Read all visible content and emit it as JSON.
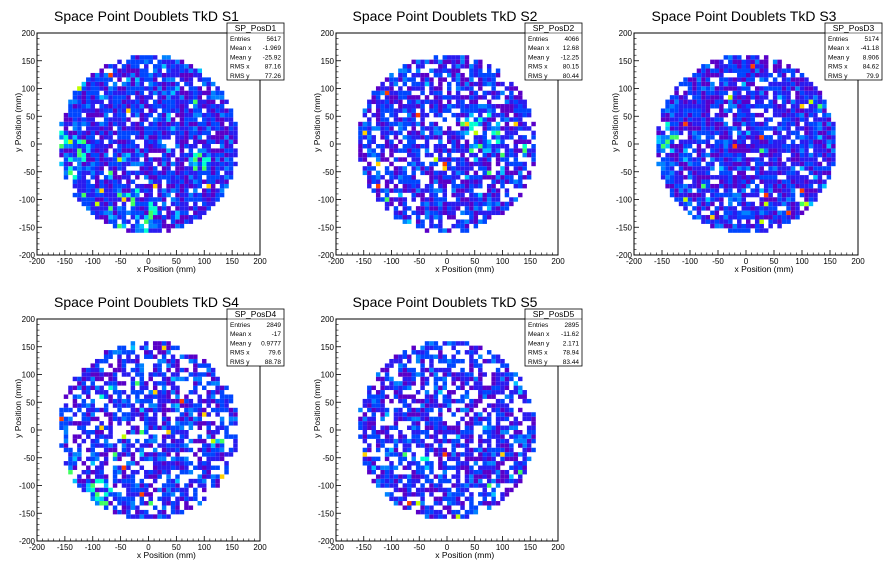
{
  "chart_data": [
    {
      "type": "heatmap",
      "title": "Space Point Doublets TkD S1",
      "xlabel": "x Position (mm)",
      "ylabel": "y Position (mm)",
      "xlim": [
        -200,
        200
      ],
      "ylim": [
        -200,
        200
      ],
      "xticks": [
        -200,
        -150,
        -100,
        -50,
        0,
        50,
        100,
        150,
        200
      ],
      "yticks": [
        -200,
        -150,
        -100,
        -50,
        0,
        50,
        100,
        150,
        200
      ],
      "stats": {
        "name": "SP_PosD1",
        "rows": [
          [
            "Entries",
            "5617"
          ],
          [
            "Mean x",
            "-1.969"
          ],
          [
            "Mean y",
            "-25.92"
          ],
          [
            "RMS x",
            "87.16"
          ],
          [
            "RMS y",
            "77.26"
          ]
        ]
      }
    },
    {
      "type": "heatmap",
      "title": "Space Point Doublets TkD S2",
      "xlabel": "x Position (mm)",
      "ylabel": "y Position (mm)",
      "xlim": [
        -200,
        200
      ],
      "ylim": [
        -200,
        200
      ],
      "xticks": [
        -200,
        -150,
        -100,
        -50,
        0,
        50,
        100,
        150,
        200
      ],
      "yticks": [
        -200,
        -150,
        -100,
        -50,
        0,
        50,
        100,
        150,
        200
      ],
      "stats": {
        "name": "SP_PosD2",
        "rows": [
          [
            "Entries",
            "4066"
          ],
          [
            "Mean x",
            "12.68"
          ],
          [
            "Mean y",
            "-12.25"
          ],
          [
            "RMS x",
            "80.15"
          ],
          [
            "RMS y",
            "80.44"
          ]
        ]
      }
    },
    {
      "type": "heatmap",
      "title": "Space Point Doublets TkD S3",
      "xlabel": "x Position (mm)",
      "ylabel": "y Position (mm)",
      "xlim": [
        -200,
        200
      ],
      "ylim": [
        -200,
        200
      ],
      "xticks": [
        -200,
        -150,
        -100,
        -50,
        0,
        50,
        100,
        150,
        200
      ],
      "yticks": [
        -200,
        -150,
        -100,
        -50,
        0,
        50,
        100,
        150,
        200
      ],
      "stats": {
        "name": "SP_PosD3",
        "rows": [
          [
            "Entries",
            "5174"
          ],
          [
            "Mean x",
            "-41.18"
          ],
          [
            "Mean y",
            "8.906"
          ],
          [
            "RMS x",
            "84.62"
          ],
          [
            "RMS y",
            "79.9"
          ]
        ]
      }
    },
    {
      "type": "heatmap",
      "title": "Space Point Doublets TkD S4",
      "xlabel": "x Position (mm)",
      "ylabel": "y Position (mm)",
      "xlim": [
        -200,
        200
      ],
      "ylim": [
        -200,
        200
      ],
      "xticks": [
        -200,
        -150,
        -100,
        -50,
        0,
        50,
        100,
        150,
        200
      ],
      "yticks": [
        -200,
        -150,
        -100,
        -50,
        0,
        50,
        100,
        150,
        200
      ],
      "stats": {
        "name": "SP_PosD4",
        "rows": [
          [
            "Entries",
            "2849"
          ],
          [
            "Mean x",
            "-17"
          ],
          [
            "Mean y",
            "0.9777"
          ],
          [
            "RMS x",
            "79.6"
          ],
          [
            "RMS y",
            "88.78"
          ]
        ]
      }
    },
    {
      "type": "heatmap",
      "title": "Space Point Doublets TkD S5",
      "xlabel": "x Position (mm)",
      "ylabel": "y Position (mm)",
      "xlim": [
        -200,
        200
      ],
      "ylim": [
        -200,
        200
      ],
      "xticks": [
        -200,
        -150,
        -100,
        -50,
        0,
        50,
        100,
        150,
        200
      ],
      "yticks": [
        -200,
        -150,
        -100,
        -50,
        0,
        50,
        100,
        150,
        200
      ],
      "stats": {
        "name": "SP_PosD5",
        "rows": [
          [
            "Entries",
            "2895"
          ],
          [
            "Mean x",
            "-11.62"
          ],
          [
            "Mean y",
            "2.171"
          ],
          [
            "RMS x",
            "78.94"
          ],
          [
            "RMS y",
            "83.44"
          ]
        ]
      }
    }
  ],
  "colors": {
    "palette": [
      "#5a00c8",
      "#2a1cf0",
      "#0046ff",
      "#0082ff",
      "#00c2ff",
      "#00ffd0",
      "#40ff60",
      "#c0ff00",
      "#ffd000",
      "#ff4000"
    ],
    "frame": "#000000",
    "background": "#ffffff"
  }
}
